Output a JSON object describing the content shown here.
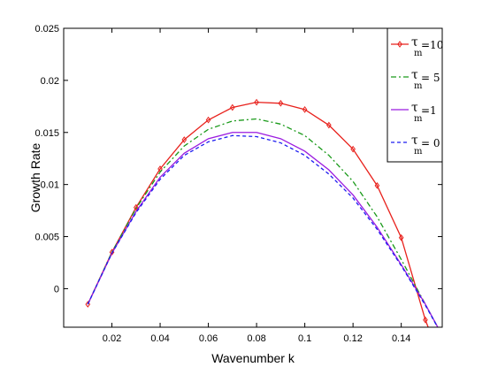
{
  "chart_data": {
    "type": "line",
    "title": "",
    "xlabel": "Wavenumber k",
    "ylabel": "Growth Rate",
    "xlim": [
      0.0,
      0.157
    ],
    "ylim": [
      -0.0037,
      0.025
    ],
    "grid": false,
    "legend_position": "top-right",
    "x_ticks": [
      0.02,
      0.04,
      0.06,
      0.08,
      0.1,
      0.12,
      0.14
    ],
    "x_tick_labels": [
      "0.02",
      "0.04",
      "0.06",
      "0.08",
      "0.1",
      "0.12",
      "0.14"
    ],
    "y_ticks": [
      0,
      0.005,
      0.01,
      0.015,
      0.02,
      0.025
    ],
    "y_tick_labels": [
      "0",
      "0.005",
      "0.01",
      "0.015",
      "0.02",
      "0.025"
    ],
    "series": [
      {
        "legend_symbol": "τ",
        "legend_subscript": "m",
        "legend_value": "=10",
        "color": "#e8211c",
        "style": "solid",
        "marker": "diamond",
        "x": [
          0.01,
          0.02,
          0.03,
          0.04,
          0.05,
          0.06,
          0.07,
          0.08,
          0.09,
          0.1,
          0.11,
          0.12,
          0.13,
          0.14,
          0.15,
          0.155
        ],
        "y": [
          -0.0015,
          0.0035,
          0.0078,
          0.0115,
          0.0143,
          0.0162,
          0.0174,
          0.0179,
          0.0178,
          0.0172,
          0.0157,
          0.0134,
          0.0099,
          0.0049,
          -0.003,
          -0.006
        ]
      },
      {
        "legend_symbol": "τ",
        "legend_subscript": "m",
        "legend_value": "= 5",
        "color": "#1a9a1a",
        "style": "dashdot",
        "marker": "none",
        "x": [
          0.01,
          0.02,
          0.03,
          0.04,
          0.05,
          0.06,
          0.07,
          0.08,
          0.09,
          0.1,
          0.11,
          0.12,
          0.13,
          0.14,
          0.15,
          0.157
        ],
        "y": [
          -0.0015,
          0.0035,
          0.0077,
          0.0112,
          0.0137,
          0.0153,
          0.0161,
          0.0163,
          0.0158,
          0.0147,
          0.0128,
          0.0103,
          0.0069,
          0.0028,
          -0.0015,
          -0.0045
        ]
      },
      {
        "legend_symbol": "τ",
        "legend_subscript": "m",
        "legend_value": "=1",
        "color": "#9b1be0",
        "style": "solid",
        "marker": "none",
        "x": [
          0.01,
          0.02,
          0.03,
          0.04,
          0.05,
          0.06,
          0.07,
          0.08,
          0.09,
          0.1,
          0.11,
          0.12,
          0.13,
          0.14,
          0.15,
          0.157
        ],
        "y": [
          -0.0015,
          0.0034,
          0.0074,
          0.0107,
          0.013,
          0.0144,
          0.015,
          0.015,
          0.0144,
          0.0132,
          0.0114,
          0.009,
          0.0059,
          0.0023,
          -0.0015,
          -0.0045
        ]
      },
      {
        "legend_symbol": "τ",
        "legend_subscript": "m",
        "legend_value": "= 0",
        "color": "#1c1cf0",
        "style": "dashed",
        "marker": "none",
        "x": [
          0.01,
          0.02,
          0.03,
          0.04,
          0.05,
          0.06,
          0.07,
          0.08,
          0.09,
          0.1,
          0.11,
          0.12,
          0.13,
          0.14,
          0.15,
          0.157
        ],
        "y": [
          -0.0015,
          0.0034,
          0.0073,
          0.0105,
          0.0128,
          0.0141,
          0.0147,
          0.0146,
          0.014,
          0.0128,
          0.011,
          0.0087,
          0.0057,
          0.0022,
          -0.0016,
          -0.0045
        ]
      }
    ]
  }
}
